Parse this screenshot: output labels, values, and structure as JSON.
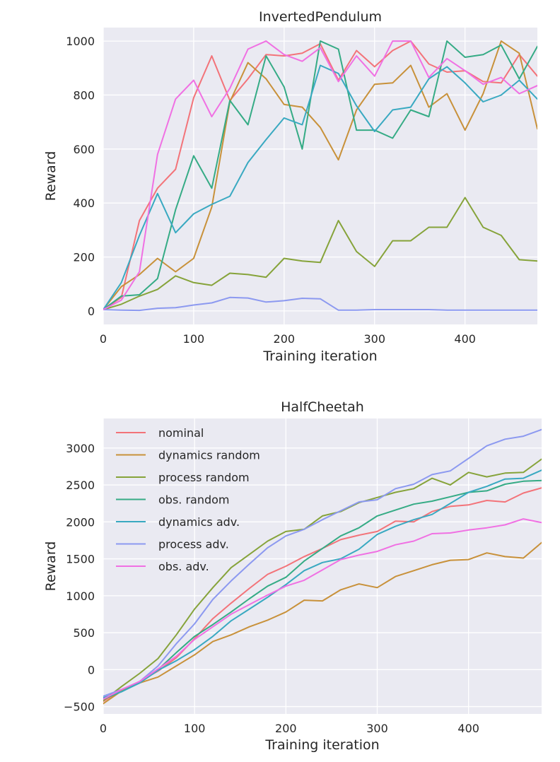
{
  "figure": {
    "colors": {
      "nominal": "#f37379",
      "dynamics random": "#c8913a",
      "process random": "#86a33a",
      "obs. random": "#35ab85",
      "dynamics adv.": "#39a9c1",
      "process adv.": "#8c99f0",
      "obs. adv.": "#f070e3"
    }
  },
  "chart_data": [
    {
      "type": "line",
      "title": "InvertedPendulum",
      "xlabel": "Training iteration",
      "ylabel": "Reward",
      "xlim": [
        0,
        480
      ],
      "ylim": [
        -50,
        1050
      ],
      "xticks": [
        0,
        100,
        200,
        300,
        400
      ],
      "yticks": [
        0,
        200,
        400,
        600,
        800,
        1000
      ],
      "grid": true,
      "legend": null,
      "x": [
        0,
        20,
        40,
        60,
        80,
        100,
        120,
        140,
        160,
        180,
        200,
        220,
        240,
        260,
        280,
        300,
        320,
        340,
        360,
        380,
        400,
        420,
        440,
        460,
        480
      ],
      "series": [
        {
          "name": "nominal",
          "values": [
            5,
            50,
            335,
            455,
            525,
            790,
            945,
            780,
            860,
            950,
            945,
            955,
            990,
            855,
            965,
            905,
            965,
            1000,
            915,
            885,
            890,
            850,
            845,
            950,
            870
          ]
        },
        {
          "name": "dynamics random",
          "values": [
            5,
            90,
            135,
            195,
            145,
            195,
            385,
            775,
            920,
            860,
            765,
            755,
            680,
            560,
            745,
            840,
            845,
            910,
            755,
            805,
            670,
            805,
            1000,
            955,
            675
          ]
        },
        {
          "name": "process random",
          "values": [
            5,
            25,
            55,
            80,
            130,
            105,
            95,
            140,
            135,
            125,
            195,
            185,
            180,
            335,
            220,
            165,
            260,
            260,
            310,
            310,
            420,
            310,
            280,
            190,
            185
          ]
        },
        {
          "name": "obs. random",
          "values": [
            5,
            55,
            60,
            120,
            375,
            575,
            455,
            780,
            690,
            945,
            830,
            600,
            1000,
            970,
            670,
            670,
            640,
            745,
            720,
            1000,
            940,
            950,
            985,
            860,
            980
          ]
        },
        {
          "name": "dynamics adv.",
          "values": [
            5,
            105,
            280,
            435,
            290,
            360,
            395,
            425,
            550,
            635,
            715,
            690,
            910,
            880,
            760,
            665,
            745,
            755,
            860,
            905,
            845,
            775,
            800,
            855,
            785
          ]
        },
        {
          "name": "process adv.",
          "values": [
            5,
            3,
            2,
            10,
            12,
            22,
            30,
            50,
            48,
            33,
            38,
            47,
            45,
            3,
            3,
            5,
            5,
            5,
            5,
            3,
            3,
            3,
            3,
            3,
            3
          ]
        },
        {
          "name": "obs. adv.",
          "values": [
            5,
            40,
            145,
            580,
            785,
            855,
            720,
            825,
            970,
            1000,
            950,
            925,
            975,
            850,
            945,
            870,
            1000,
            1000,
            865,
            935,
            890,
            840,
            865,
            805,
            835
          ]
        }
      ]
    },
    {
      "type": "line",
      "title": "HalfCheetah",
      "xlabel": "Training iteration",
      "ylabel": "Reward",
      "xlim": [
        0,
        480
      ],
      "ylim": [
        -600,
        3400
      ],
      "xticks": [
        0,
        100,
        200,
        300,
        400
      ],
      "yticks": [
        -500,
        0,
        500,
        1000,
        1500,
        2000,
        2500,
        3000
      ],
      "grid": true,
      "legend": "top-left",
      "x": [
        0,
        20,
        40,
        60,
        80,
        100,
        120,
        140,
        160,
        180,
        200,
        220,
        240,
        260,
        280,
        300,
        320,
        340,
        360,
        380,
        400,
        420,
        440,
        460,
        480
      ],
      "series": [
        {
          "name": "nominal",
          "values": [
            -430,
            -280,
            -160,
            -20,
            160,
            420,
            690,
            900,
            1100,
            1290,
            1400,
            1530,
            1640,
            1760,
            1820,
            1870,
            2010,
            2000,
            2140,
            2210,
            2230,
            2290,
            2270,
            2390,
            2460
          ]
        },
        {
          "name": "dynamics random",
          "values": [
            -460,
            -290,
            -180,
            -100,
            50,
            200,
            380,
            470,
            580,
            670,
            780,
            940,
            930,
            1080,
            1160,
            1110,
            1260,
            1340,
            1420,
            1480,
            1490,
            1580,
            1530,
            1510,
            1720
          ]
        },
        {
          "name": "process random",
          "values": [
            -420,
            -230,
            -50,
            150,
            470,
            820,
            1110,
            1380,
            1560,
            1740,
            1870,
            1900,
            2080,
            2140,
            2260,
            2330,
            2400,
            2450,
            2590,
            2500,
            2670,
            2610,
            2660,
            2670,
            2850
          ]
        },
        {
          "name": "obs. random",
          "values": [
            -400,
            -300,
            -170,
            0,
            230,
            450,
            610,
            780,
            960,
            1130,
            1250,
            1470,
            1640,
            1810,
            1920,
            2080,
            2160,
            2240,
            2280,
            2340,
            2400,
            2420,
            2510,
            2550,
            2560
          ]
        },
        {
          "name": "dynamics adv.",
          "values": [
            -380,
            -300,
            -180,
            -10,
            120,
            270,
            450,
            660,
            820,
            980,
            1150,
            1340,
            1450,
            1500,
            1630,
            1830,
            1940,
            2030,
            2100,
            2250,
            2400,
            2480,
            2580,
            2590,
            2700
          ]
        },
        {
          "name": "process adv.",
          "values": [
            -360,
            -270,
            -160,
            50,
            350,
            620,
            950,
            1200,
            1430,
            1650,
            1810,
            1900,
            2030,
            2150,
            2270,
            2300,
            2450,
            2510,
            2640,
            2690,
            2860,
            3030,
            3120,
            3160,
            3250
          ]
        },
        {
          "name": "obs. adv.",
          "values": [
            -400,
            -270,
            -160,
            10,
            180,
            410,
            580,
            750,
            880,
            1010,
            1130,
            1210,
            1350,
            1490,
            1550,
            1600,
            1690,
            1740,
            1840,
            1850,
            1890,
            1920,
            1960,
            2040,
            1990
          ]
        }
      ]
    }
  ]
}
